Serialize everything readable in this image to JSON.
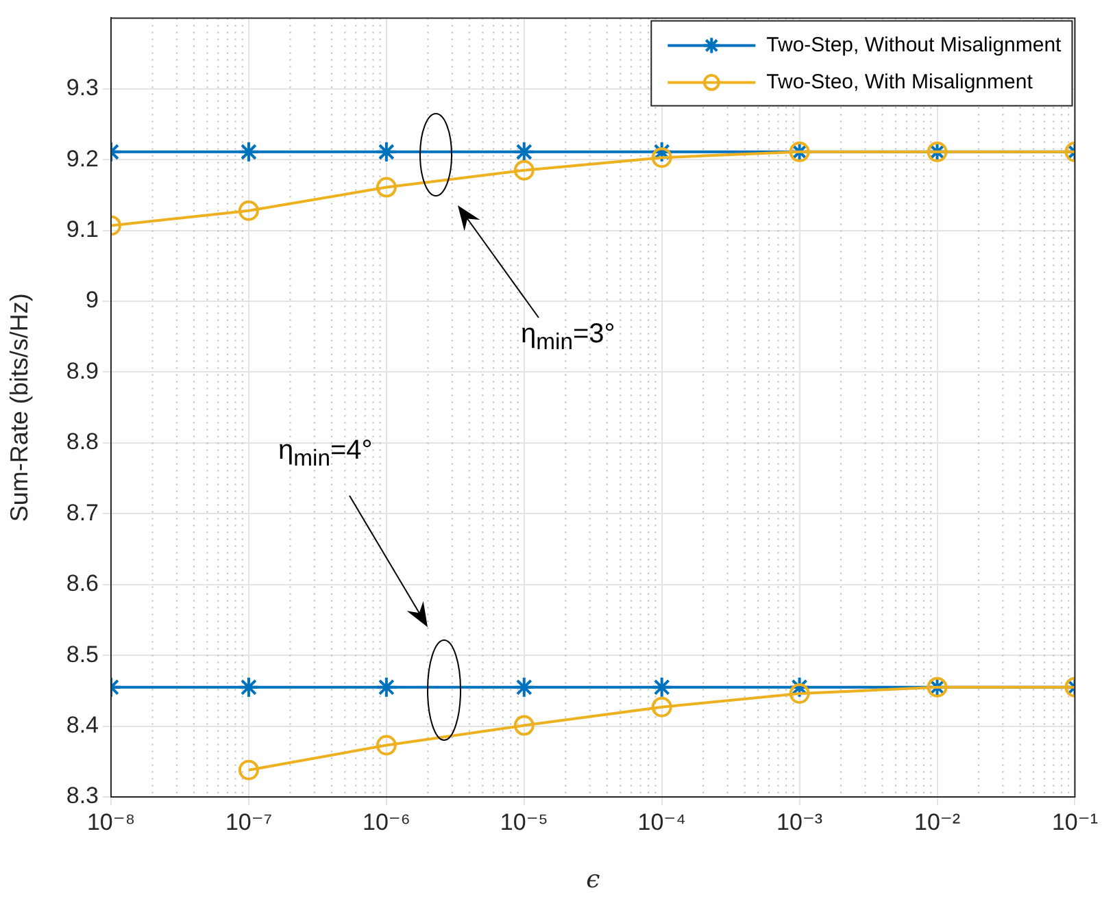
{
  "chart_data": {
    "type": "line",
    "xlabel": "ϵ",
    "ylabel": "Sum-Rate (bits/s/Hz)",
    "x": [
      1e-08,
      1e-07,
      1e-06,
      1e-05,
      0.0001,
      0.001,
      0.01,
      0.1
    ],
    "series": [
      {
        "name": "Two-Step, Without Misalignment",
        "color": "#0072bd",
        "marker": "cross",
        "values": [
          9.211,
          9.211,
          9.211,
          9.211,
          9.211,
          9.211,
          9.211,
          9.211
        ]
      },
      {
        "name": "Two-Steo, With Misalignment",
        "color": "#edb120",
        "marker": "circle",
        "values": [
          9.107,
          9.128,
          9.161,
          9.185,
          9.203,
          9.211,
          9.211,
          9.211
        ]
      },
      {
        "color": "#0072bd",
        "marker": "cross",
        "values": [
          8.455,
          8.455,
          8.455,
          8.455,
          8.455,
          8.455,
          8.455,
          8.455
        ]
      },
      {
        "color": "#edb120",
        "marker": "circle",
        "values": [
          null,
          8.338,
          8.373,
          8.401,
          8.427,
          8.446,
          8.455,
          8.455
        ]
      }
    ],
    "log": "x",
    "xlim": [
      1e-08,
      0.1
    ],
    "xticks": [
      {
        "value": 1e-08,
        "label": "10⁻⁸"
      },
      {
        "value": 1e-07,
        "label": "10⁻⁷"
      },
      {
        "value": 1e-06,
        "label": "10⁻⁶"
      },
      {
        "value": 1e-05,
        "label": "10⁻⁵"
      },
      {
        "value": 0.0001,
        "label": "10⁻⁴"
      },
      {
        "value": 0.001,
        "label": "10⁻³"
      },
      {
        "value": 0.01,
        "label": "10⁻²"
      },
      {
        "value": 0.1,
        "label": "10⁻¹"
      }
    ],
    "ylim": [
      8.3,
      9.4
    ],
    "yticks": [
      8.3,
      8.4,
      8.5,
      8.6,
      8.7,
      8.8,
      8.9,
      9,
      9.1,
      9.2,
      9.3
    ],
    "grid": true,
    "legend": "top right",
    "line_style": "solid",
    "annotations": [
      "η$_{min}$=3°",
      "η$_{min}$=4°"
    ]
  }
}
